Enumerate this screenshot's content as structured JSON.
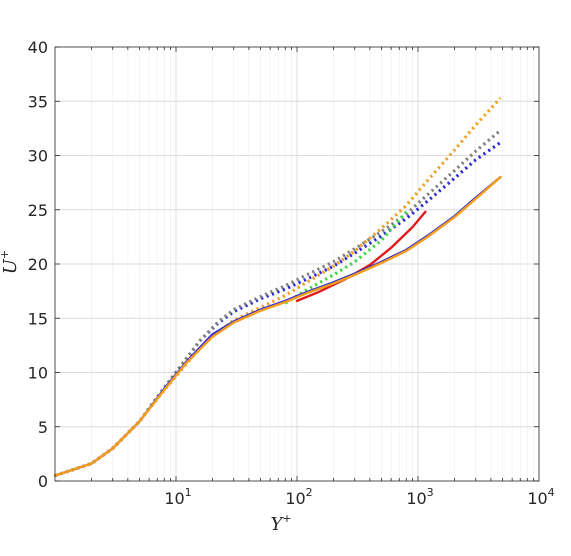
{
  "chart_data": {
    "type": "line",
    "xlabel": "Y",
    "xlabel_sup": "+",
    "ylabel": "U",
    "ylabel_sup": "+",
    "x_scale": "log",
    "xlim": [
      1,
      10000
    ],
    "ylim": [
      0,
      40
    ],
    "grid": true,
    "legend": "none",
    "x_ticks": [
      {
        "base": "10",
        "exp": "1",
        "value": 10
      },
      {
        "base": "10",
        "exp": "2",
        "value": 100
      },
      {
        "base": "10",
        "exp": "3",
        "value": 1000
      },
      {
        "base": "10",
        "exp": "4",
        "value": 10000
      }
    ],
    "y_ticks": [
      "0",
      "5",
      "10",
      "15",
      "20",
      "25",
      "30",
      "35",
      "40"
    ],
    "series": [
      {
        "color": "#2a2ad6",
        "style": "dotted",
        "x": [
          1,
          2,
          3,
          5,
          8,
          12,
          16,
          22,
          30,
          50,
          80,
          120,
          200,
          300,
          500,
          800,
          1200,
          2000,
          3000,
          4800
        ],
        "y": [
          0.5,
          1.6,
          3.0,
          5.5,
          8.6,
          11.2,
          13.0,
          14.5,
          15.6,
          16.8,
          17.7,
          18.6,
          19.8,
          21.0,
          22.6,
          24.2,
          25.8,
          27.9,
          29.6,
          31.2
        ]
      },
      {
        "color": "#7f7f7f",
        "style": "dotted",
        "x": [
          1,
          2,
          3,
          5,
          8,
          12,
          16,
          22,
          30,
          50,
          80,
          120,
          200,
          300,
          500,
          800,
          1200,
          2000,
          3000,
          4800
        ],
        "y": [
          0.5,
          1.6,
          3.0,
          5.5,
          8.6,
          11.2,
          13.0,
          14.6,
          15.8,
          17.0,
          18.0,
          19.0,
          20.2,
          21.4,
          23.0,
          24.6,
          26.4,
          28.6,
          30.4,
          32.3
        ]
      },
      {
        "color": "#f29d1b",
        "style": "dotted",
        "x": [
          1,
          2,
          3,
          5,
          8,
          12,
          16,
          22,
          30,
          50,
          80,
          120,
          200,
          300,
          500,
          800,
          1200,
          2000,
          3000,
          4800
        ],
        "y": [
          0.5,
          1.6,
          3.0,
          5.5,
          8.4,
          10.7,
          12.3,
          13.7,
          14.8,
          16.0,
          17.1,
          18.3,
          19.8,
          21.2,
          23.3,
          25.4,
          27.7,
          30.5,
          32.8,
          35.3
        ]
      },
      {
        "color": "#3ad63a",
        "style": "dotted",
        "x": [
          80,
          120,
          200,
          300,
          500,
          800
        ],
        "y": [
          16.4,
          17.6,
          19.0,
          20.2,
          22.2,
          24.8
        ]
      },
      {
        "color": "#e01b1b",
        "style": "solid",
        "x": [
          100,
          150,
          250,
          400,
          600,
          900,
          1150
        ],
        "y": [
          16.6,
          17.4,
          18.6,
          19.9,
          21.5,
          23.4,
          24.8
        ]
      },
      {
        "color": "#2a2ad6",
        "style": "solid",
        "x": [
          1,
          2,
          3,
          5,
          8,
          12,
          20,
          30,
          50,
          80,
          120,
          200,
          300,
          500,
          800,
          1200,
          2000,
          3000,
          4800
        ],
        "y": [
          0.5,
          1.6,
          3.0,
          5.5,
          8.5,
          10.9,
          13.5,
          14.7,
          15.8,
          16.6,
          17.4,
          18.3,
          19.1,
          20.2,
          21.3,
          22.6,
          24.4,
          26.1,
          28.0
        ]
      },
      {
        "color": "#f29d1b",
        "style": "solid",
        "x": [
          1,
          2,
          3,
          5,
          8,
          12,
          20,
          30,
          50,
          80,
          120,
          200,
          300,
          500,
          800,
          1200,
          2000,
          3000,
          4800
        ],
        "y": [
          0.5,
          1.6,
          3.0,
          5.5,
          8.4,
          10.8,
          13.3,
          14.6,
          15.7,
          16.5,
          17.3,
          18.2,
          19.0,
          20.1,
          21.2,
          22.5,
          24.3,
          26.0,
          28.0
        ]
      }
    ]
  }
}
